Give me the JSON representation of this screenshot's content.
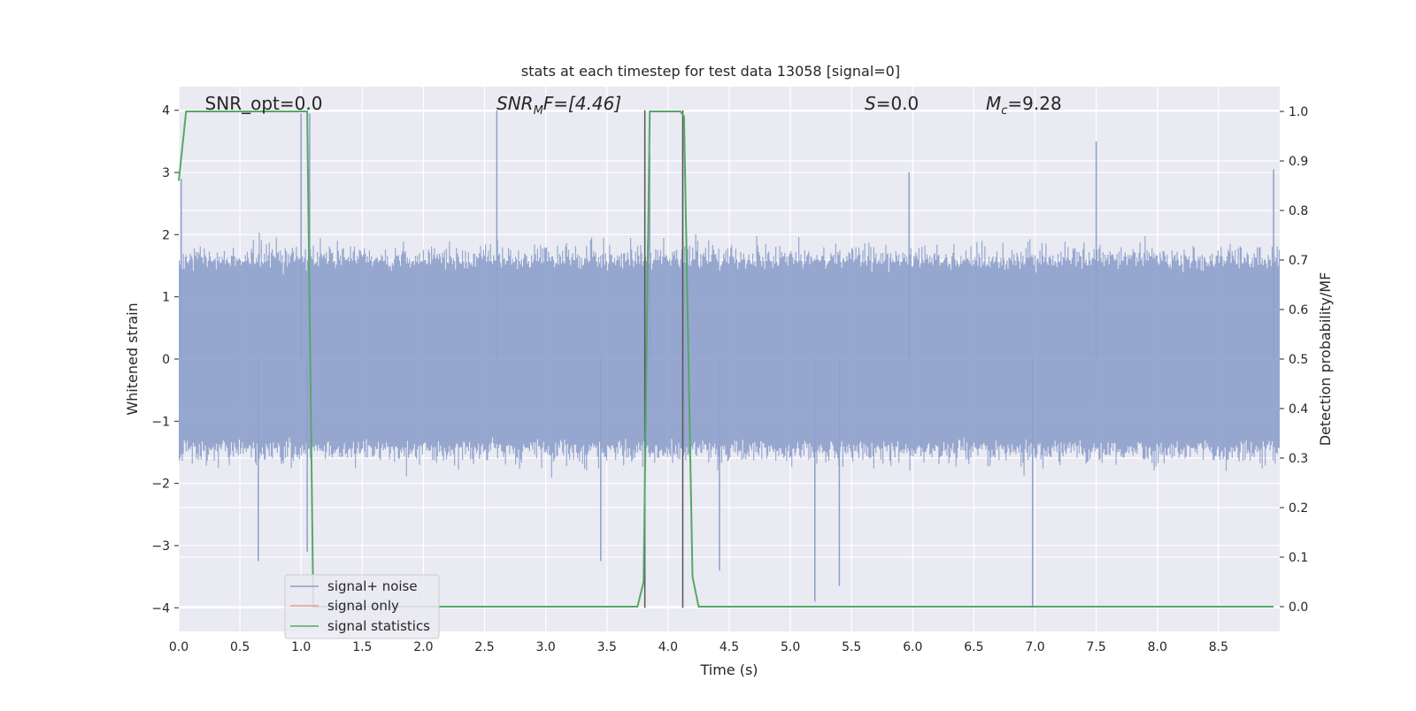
{
  "chart_data": {
    "type": "line",
    "title": "stats at each timestep for test data 13058 [signal=0]",
    "xlabel": "Time (s)",
    "ylabel_left": "Whitened strain",
    "ylabel_right": "Detection probability/MF",
    "xlim": [
      0.0,
      9.0
    ],
    "ylim_left": [
      -4.38,
      4.38
    ],
    "ylim_right": [
      -0.05,
      1.05
    ],
    "grid": true,
    "xticks": [
      "0.0",
      "0.5",
      "1.0",
      "1.5",
      "2.0",
      "2.5",
      "3.0",
      "3.5",
      "4.0",
      "4.5",
      "5.0",
      "5.5",
      "6.0",
      "6.5",
      "7.0",
      "7.5",
      "8.0",
      "8.5"
    ],
    "yticks_left": [
      "−4",
      "−3",
      "−2",
      "−1",
      "0",
      "1",
      "2",
      "3",
      "4"
    ],
    "yticks_right": [
      "0.0",
      "0.1",
      "0.2",
      "0.3",
      "0.4",
      "0.5",
      "0.6",
      "0.7",
      "0.8",
      "0.9",
      "1.0"
    ],
    "annotations": {
      "snr_opt": "SNR_opt=0.0",
      "snr_mf_main": "SNR",
      "snr_mf_sub": "M",
      "snr_mf_rest": "F=[4.46]",
      "s_main": "S",
      "s_rest": "=0.0",
      "mc_main": "M",
      "mc_sub": "c",
      "mc_rest": "=9.28"
    },
    "legend": {
      "placement": "lower-left",
      "entries": [
        "signal+ noise",
        "signal only",
        "signal statistics"
      ]
    },
    "colors": {
      "noise": "#8da0cb",
      "signal_only": "#e8a088",
      "statistics": "#55a868",
      "marker_lines": "#555555",
      "axes_bg": "#eaeaf2",
      "grid": "#ffffff"
    },
    "series": [
      {
        "name": "signal+ noise",
        "axis": "left",
        "description_values": "noise band",
        "envelope_typical": [
          -1.6,
          2.0
        ],
        "spikes": [
          {
            "x": 0.02,
            "y": 2.9
          },
          {
            "x": 1.0,
            "y": 3.95
          },
          {
            "x": 1.07,
            "y": 3.95
          },
          {
            "x": 2.6,
            "y": 4.0
          },
          {
            "x": 3.85,
            "y": 3.3
          },
          {
            "x": 4.12,
            "y": 3.45
          },
          {
            "x": 5.97,
            "y": 3.0
          },
          {
            "x": 7.5,
            "y": 3.5
          },
          {
            "x": 8.95,
            "y": 3.05
          },
          {
            "x": 0.65,
            "y": -3.25
          },
          {
            "x": 1.05,
            "y": -3.1
          },
          {
            "x": 3.45,
            "y": -3.25
          },
          {
            "x": 5.2,
            "y": -3.9
          },
          {
            "x": 5.4,
            "y": -3.65
          },
          {
            "x": 6.98,
            "y": -4.0
          },
          {
            "x": 4.42,
            "y": -3.4
          }
        ]
      },
      {
        "name": "signal only",
        "axis": "left",
        "values_note": "zero",
        "y_constant": 0.0
      },
      {
        "name": "signal statistics",
        "axis": "right",
        "x": [
          0.0,
          0.06,
          0.12,
          0.5,
          1.0,
          1.05,
          1.1,
          1.2,
          1.3,
          2.0,
          3.0,
          3.75,
          3.8,
          3.85,
          3.9,
          4.1,
          4.13,
          4.2,
          4.25,
          4.5,
          5.5,
          6.0,
          6.35,
          6.4,
          6.5,
          7.0,
          8.0,
          8.95
        ],
        "values": [
          0.86,
          1.0,
          1.0,
          1.0,
          1.0,
          1.0,
          0.0,
          0.0,
          0.0,
          0.0,
          0.0,
          0.0,
          0.05,
          1.0,
          1.0,
          1.0,
          0.99,
          0.06,
          0.0,
          0.0,
          0.0,
          0.0,
          0.0,
          0.0,
          0.0,
          0.0,
          0.0,
          0.0
        ]
      }
    ],
    "vertical_markers_x": [
      3.81,
      4.12
    ]
  }
}
